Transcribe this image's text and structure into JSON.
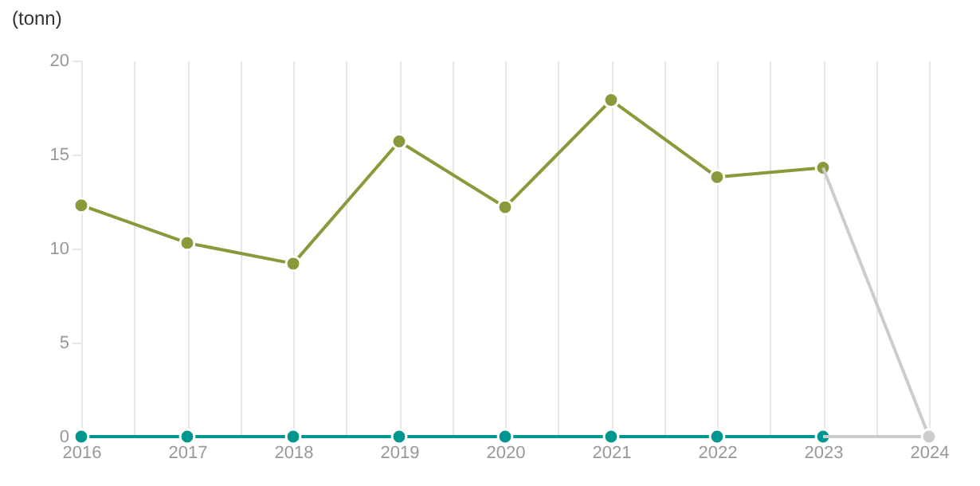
{
  "chart_data": {
    "type": "line",
    "ylabel": "(tonn)",
    "xlim": [
      2016,
      2024
    ],
    "ylim": [
      0,
      20
    ],
    "xticks": [
      2016,
      {
        "value": 2016.5,
        "label": null
      },
      2017,
      {
        "value": 2017.5,
        "label": null
      },
      2018,
      {
        "value": 2018.5,
        "label": null
      },
      2019,
      {
        "value": 2019.5,
        "label": null
      },
      2020,
      {
        "value": 2020.5,
        "label": null
      },
      2021,
      {
        "value": 2021.5,
        "label": null
      },
      2022,
      {
        "value": 2022.5,
        "label": null
      },
      2023,
      {
        "value": 2023.5,
        "label": null
      },
      2024
    ],
    "yticks": [
      0,
      5,
      10,
      15,
      20
    ],
    "grid": "x",
    "marker": "circle",
    "line_style": "solid",
    "series": [
      {
        "color": "#8a9a3b",
        "x": [
          2016,
          2017,
          2018,
          2019,
          2020,
          2021,
          2022,
          2023
        ],
        "values": [
          12.3,
          10.3,
          9.2,
          15.7,
          12.2,
          17.9,
          13.8,
          14.3
        ]
      },
      {
        "color": "#00958f",
        "x": [
          2016,
          2017,
          2018,
          2019,
          2020,
          2021,
          2022,
          2023
        ],
        "values": [
          0,
          0,
          0,
          0,
          0,
          0,
          0,
          0
        ]
      },
      {
        "color": "#cccccc",
        "x": [
          2023,
          2024
        ],
        "values": [
          14.3,
          0
        ]
      },
      {
        "color": "#cccccc",
        "x": [
          2023,
          2024
        ],
        "values": [
          0,
          0
        ]
      }
    ]
  }
}
